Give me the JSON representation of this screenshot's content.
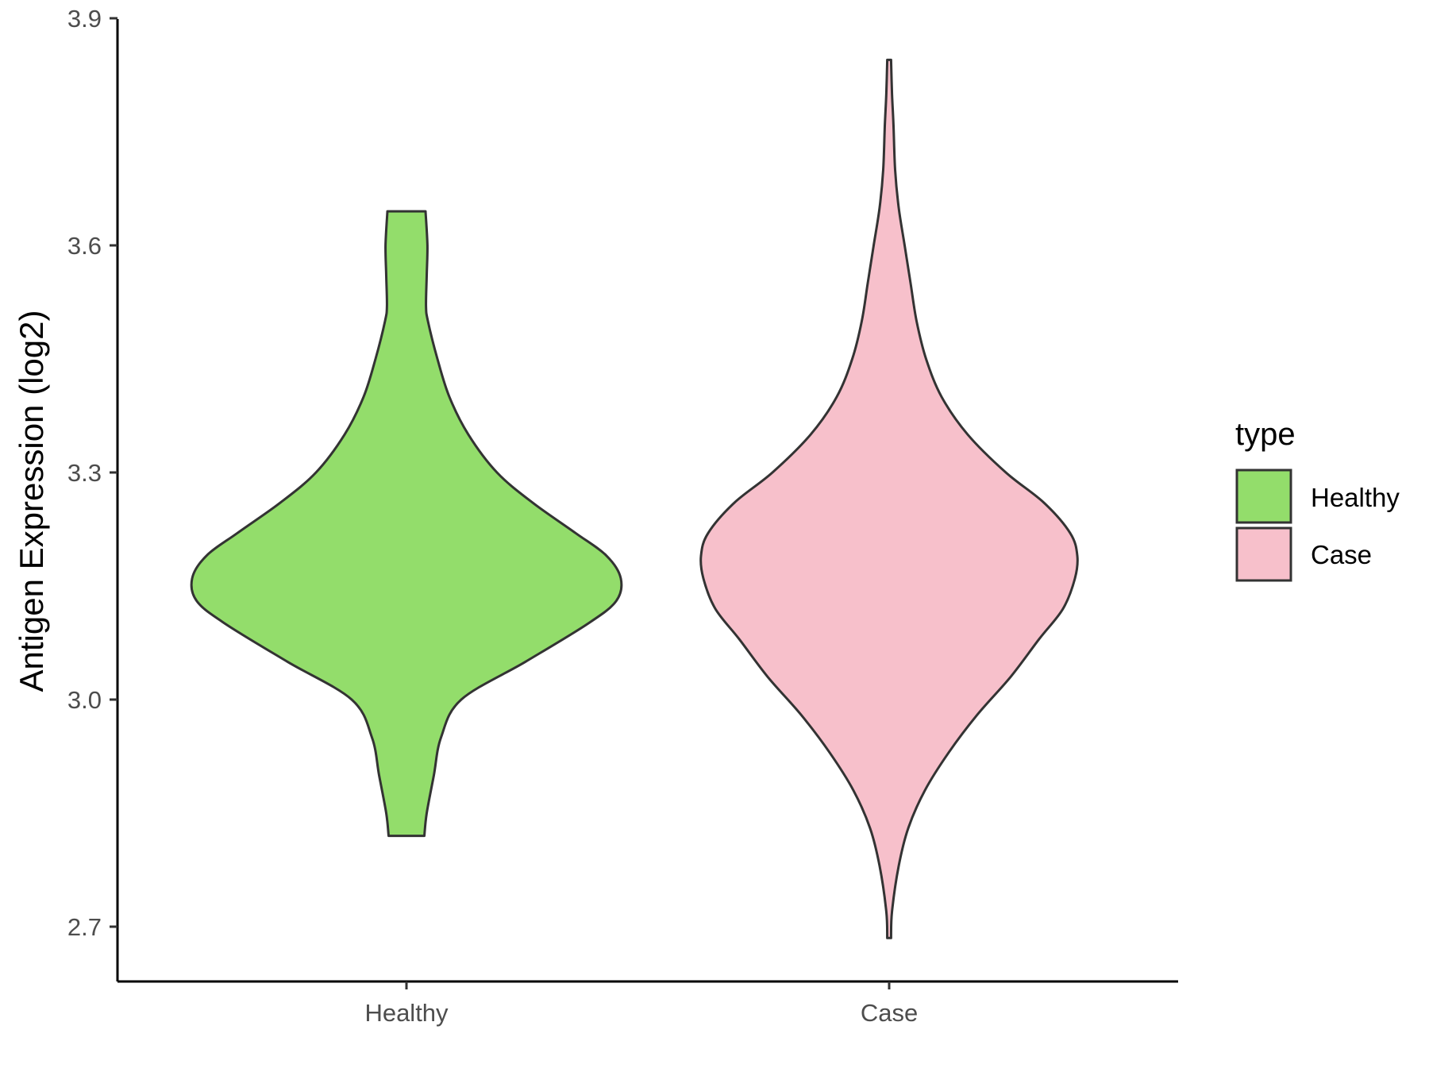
{
  "chart_data": {
    "type": "violin",
    "title": "",
    "xlabel": "",
    "ylabel": "Antigen Expression (log2)",
    "categories": [
      "Healthy",
      "Case"
    ],
    "yticks": [
      "2.7",
      "3.0",
      "3.3",
      "3.6",
      "3.9"
    ],
    "ylim": [
      2.63,
      3.9
    ],
    "grid": false,
    "legend": {
      "title": "type",
      "position": "right",
      "entries": [
        "Healthy",
        "Case"
      ]
    },
    "colors": {
      "Healthy": "#93dd6b",
      "Case": "#f7c0cb",
      "outline": "#333333"
    },
    "violins": [
      {
        "category": "Healthy",
        "ymin": 2.82,
        "ymax": 3.645,
        "density_profile": [
          [
            2.82,
            0.075
          ],
          [
            2.85,
            0.085
          ],
          [
            2.9,
            0.115
          ],
          [
            2.95,
            0.145
          ],
          [
            3.0,
            0.23
          ],
          [
            3.05,
            0.5
          ],
          [
            3.1,
            0.76
          ],
          [
            3.13,
            0.88
          ],
          [
            3.16,
            0.9
          ],
          [
            3.19,
            0.84
          ],
          [
            3.22,
            0.71
          ],
          [
            3.26,
            0.53
          ],
          [
            3.3,
            0.38
          ],
          [
            3.35,
            0.26
          ],
          [
            3.4,
            0.18
          ],
          [
            3.45,
            0.13
          ],
          [
            3.5,
            0.09
          ],
          [
            3.52,
            0.082
          ],
          [
            3.56,
            0.085
          ],
          [
            3.6,
            0.088
          ],
          [
            3.645,
            0.08
          ]
        ]
      },
      {
        "category": "Case",
        "ymin": 2.685,
        "ymax": 3.845,
        "density_profile": [
          [
            2.685,
            0.008
          ],
          [
            2.72,
            0.012
          ],
          [
            2.78,
            0.04
          ],
          [
            2.83,
            0.08
          ],
          [
            2.88,
            0.15
          ],
          [
            2.93,
            0.25
          ],
          [
            2.98,
            0.37
          ],
          [
            3.03,
            0.51
          ],
          [
            3.08,
            0.63
          ],
          [
            3.12,
            0.73
          ],
          [
            3.16,
            0.78
          ],
          [
            3.19,
            0.79
          ],
          [
            3.22,
            0.76
          ],
          [
            3.26,
            0.65
          ],
          [
            3.3,
            0.49
          ],
          [
            3.35,
            0.33
          ],
          [
            3.4,
            0.22
          ],
          [
            3.45,
            0.155
          ],
          [
            3.5,
            0.115
          ],
          [
            3.55,
            0.09
          ],
          [
            3.6,
            0.065
          ],
          [
            3.65,
            0.04
          ],
          [
            3.7,
            0.025
          ],
          [
            3.76,
            0.018
          ],
          [
            3.8,
            0.012
          ],
          [
            3.845,
            0.008
          ]
        ]
      }
    ]
  }
}
